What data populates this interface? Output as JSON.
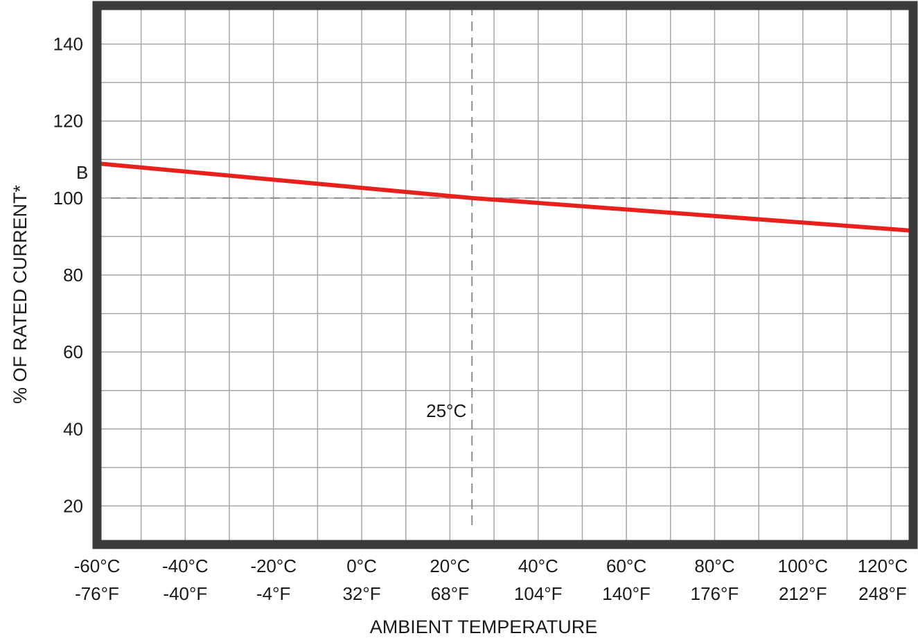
{
  "chart_data": {
    "type": "line",
    "xlabel": "AMBIENT TEMPERATURE",
    "ylabel": "% OF RATED CURRENT*",
    "xlim": [
      -60,
      125
    ],
    "ylim": [
      10,
      150
    ],
    "grid": true,
    "x_ticks": [
      {
        "c": "-60°C",
        "f": "-76°F",
        "value": -60
      },
      {
        "c": "-40°C",
        "f": "-40°F",
        "value": -40
      },
      {
        "c": "-20°C",
        "f": "-4°F",
        "value": -20
      },
      {
        "c": "0°C",
        "f": "32°F",
        "value": 0
      },
      {
        "c": "20°C",
        "f": "68°F",
        "value": 20
      },
      {
        "c": "40°C",
        "f": "104°F",
        "value": 40
      },
      {
        "c": "60°C",
        "f": "140°F",
        "value": 60
      },
      {
        "c": "80°C",
        "f": "176°F",
        "value": 80
      },
      {
        "c": "100°C",
        "f": "212°F",
        "value": 100
      },
      {
        "c": "120°C",
        "f": "248°F",
        "value": 120
      }
    ],
    "y_ticks": [
      20,
      40,
      60,
      80,
      100,
      120,
      140
    ],
    "reference_lines": {
      "vertical": {
        "x": 25,
        "label": "25°C"
      },
      "horizontal": {
        "y": 100
      }
    },
    "series": [
      {
        "name": "B",
        "color": "#e8211d",
        "x": [
          -60,
          25,
          125
        ],
        "y": [
          109,
          100,
          91.5
        ]
      }
    ]
  },
  "colors": {
    "frame": "#3b3b3b",
    "grid": "#a6a6a6",
    "reference": "#8c8c8c",
    "curve": "#e8211d"
  }
}
